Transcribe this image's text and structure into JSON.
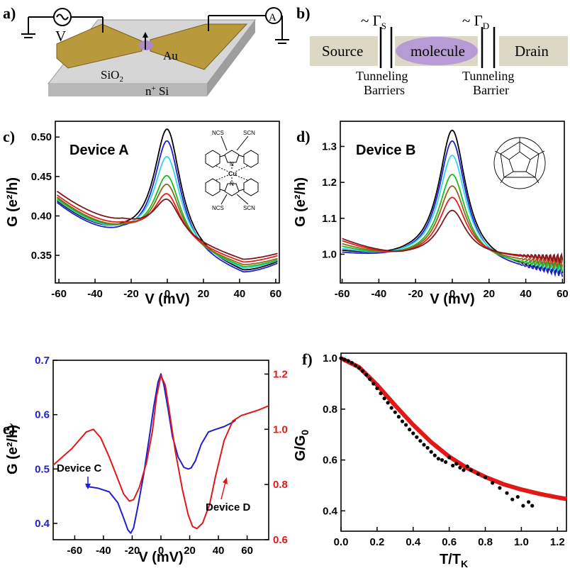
{
  "panel_labels": {
    "a": "a)",
    "b": "b)",
    "c": "c)",
    "d": "d)",
    "e": "e)",
    "f": "f)"
  },
  "schematic_a": {
    "v_label": "V",
    "ammeter": "A",
    "au": "Au",
    "sio2": "SiO",
    "sio2_sub": "2",
    "nsi_pre": "n",
    "nsi_sup": "+",
    "nsi_post": " Si"
  },
  "schematic_b": {
    "source": "Source",
    "molecule": "molecule",
    "drain": "Drain",
    "gamma_s": "~ Γ",
    "gamma_s_sub": "S",
    "gamma_d": "~ Γ",
    "gamma_d_sub": "D",
    "tb_left_1": "Tunneling",
    "tb_left_2": "Barriers",
    "tb_right_1": "Tunneling",
    "tb_right_2": "Barrier"
  },
  "molecule_c": {
    "ncs": "NCS",
    "scn": "SCN",
    "n": "N",
    "cu": "Cu"
  },
  "colors": {
    "blue": "#1f1fd0",
    "red": "#e01818",
    "black": "#000000"
  },
  "chart_data": [
    {
      "type": "line",
      "panel": "c",
      "annotation": "Device A",
      "xlabel": "V (mV)",
      "ylabel": "G (e²/h)",
      "xlim": [
        -62,
        62
      ],
      "ylim": [
        0.315,
        0.52
      ],
      "xticks": [
        -60,
        -40,
        -20,
        0,
        20,
        40,
        60
      ],
      "yticks": [
        0.35,
        0.4,
        0.45,
        0.5
      ],
      "ytick_labels": [
        "0.35",
        "0.40",
        "0.45",
        "0.50"
      ],
      "series": [
        {
          "color": "#000000",
          "peak": 0.51,
          "left_edge": 0.418,
          "left_min": 0.374,
          "right_min": 0.325,
          "right_edge": 0.34
        },
        {
          "color": "#1f1fd0",
          "peak": 0.495,
          "left_edge": 0.416,
          "left_min": 0.372,
          "right_min": 0.323,
          "right_edge": 0.338
        },
        {
          "color": "#33d6e6",
          "peak": 0.475,
          "left_edge": 0.42,
          "left_min": 0.377,
          "right_min": 0.329,
          "right_edge": 0.342
        },
        {
          "color": "#22b822",
          "peak": 0.451,
          "left_edge": 0.422,
          "left_min": 0.38,
          "right_min": 0.332,
          "right_edge": 0.343
        },
        {
          "color": "#8a6a1a",
          "peak": 0.44,
          "left_edge": 0.424,
          "left_min": 0.382,
          "right_min": 0.335,
          "right_edge": 0.345
        },
        {
          "color": "#e02020",
          "peak": 0.428,
          "left_edge": 0.427,
          "left_min": 0.386,
          "right_min": 0.339,
          "right_edge": 0.349
        },
        {
          "color": "#7a1a1a",
          "peak": 0.421,
          "left_edge": 0.432,
          "left_min": 0.392,
          "right_min": 0.343,
          "right_edge": 0.352
        }
      ]
    },
    {
      "type": "line",
      "panel": "d",
      "annotation": "Device B",
      "xlabel": "V (mV)",
      "ylabel": "G (e²/h)",
      "xlim": [
        -61,
        61
      ],
      "ylim": [
        0.92,
        1.37
      ],
      "xticks": [
        -60,
        -40,
        -20,
        0,
        20,
        40,
        60
      ],
      "yticks": [
        1.0,
        1.1,
        1.2,
        1.3
      ],
      "ytick_labels": [
        "1.0",
        "1.1",
        "1.2",
        "1.3"
      ],
      "series": [
        {
          "color": "#000000",
          "peak": 1.345,
          "left_edge": 1.005,
          "left_min": 0.985,
          "right_min": 0.955,
          "right_edge": 0.945
        },
        {
          "color": "#1f1fd0",
          "peak": 1.315,
          "left_edge": 1.0,
          "left_min": 0.983,
          "right_min": 0.95,
          "right_edge": 0.94
        },
        {
          "color": "#33d6e6",
          "peak": 1.275,
          "left_edge": 1.012,
          "left_min": 0.987,
          "right_min": 0.962,
          "right_edge": 0.955
        },
        {
          "color": "#22b822",
          "peak": 1.222,
          "left_edge": 1.02,
          "left_min": 0.988,
          "right_min": 0.966,
          "right_edge": 0.96
        },
        {
          "color": "#8a6a1a",
          "peak": 1.19,
          "left_edge": 1.028,
          "left_min": 0.99,
          "right_min": 0.975,
          "right_edge": 0.968
        },
        {
          "color": "#e02020",
          "peak": 1.158,
          "left_edge": 1.038,
          "left_min": 0.992,
          "right_min": 0.985,
          "right_edge": 0.978
        },
        {
          "color": "#7a1a1a",
          "peak": 1.122,
          "left_edge": 1.045,
          "left_min": 0.996,
          "right_min": 0.99,
          "right_edge": 0.985
        }
      ]
    },
    {
      "type": "line",
      "panel": "e",
      "xlabel": "V (mV)",
      "ylabel": "G (e²/h)",
      "xlim": [
        -75,
        75
      ],
      "xticks": [
        -60,
        -40,
        -20,
        0,
        20,
        40,
        60
      ],
      "left_axis": {
        "ylim": [
          0.37,
          0.7
        ],
        "ticks": [
          0.4,
          0.5,
          0.6,
          0.7
        ],
        "labels": [
          "0.4",
          "0.5",
          "0.6",
          "0.7"
        ],
        "color": "#1f1fd0"
      },
      "right_axis": {
        "ylim": [
          0.6,
          1.25
        ],
        "ticks": [
          0.6,
          0.8,
          1.0,
          1.2
        ],
        "labels": [
          "0.6",
          "0.8",
          "1.0",
          "1.2"
        ],
        "color": "#e01818"
      },
      "series": [
        {
          "name": "Device C",
          "axis": "left",
          "color": "#1f1fd0",
          "x": [
            -52,
            -44,
            -36,
            -30,
            -26,
            -23,
            -21,
            -19,
            -16,
            -12,
            -8,
            -5,
            -2,
            0,
            2,
            5,
            8,
            12,
            16,
            19,
            21,
            24,
            28,
            33,
            38,
            44,
            50,
            52
          ],
          "y": [
            0.468,
            0.465,
            0.458,
            0.438,
            0.41,
            0.388,
            0.382,
            0.392,
            0.432,
            0.49,
            0.56,
            0.615,
            0.66,
            0.675,
            0.655,
            0.61,
            0.56,
            0.522,
            0.503,
            0.5,
            0.502,
            0.515,
            0.545,
            0.568,
            0.573,
            0.578,
            0.586,
            0.59
          ]
        },
        {
          "name": "Device D",
          "axis": "right",
          "color": "#e01818",
          "x": [
            -75,
            -62,
            -52,
            -47,
            -42,
            -36,
            -30,
            -26,
            -22,
            -19,
            -15,
            -10,
            -6,
            -3,
            0,
            3,
            6,
            10,
            15,
            19,
            22,
            25,
            29,
            34,
            38,
            44,
            50,
            56,
            62,
            68,
            75
          ],
          "y": [
            0.87,
            0.93,
            0.99,
            1.0,
            0.97,
            0.9,
            0.82,
            0.766,
            0.74,
            0.745,
            0.79,
            0.88,
            0.99,
            1.12,
            1.195,
            1.16,
            1.06,
            0.92,
            0.78,
            0.69,
            0.648,
            0.64,
            0.66,
            0.73,
            0.83,
            0.96,
            1.03,
            1.05,
            1.06,
            1.07,
            1.085
          ]
        }
      ]
    },
    {
      "type": "scatter",
      "panel": "f",
      "xlabel": "T/T",
      "xlabel_sub": "K",
      "ylabel": "G/G",
      "ylabel_sub": "0",
      "xlim": [
        0,
        1.25
      ],
      "ylim": [
        0.32,
        1.02
      ],
      "xticks": [
        0.0,
        0.2,
        0.4,
        0.6,
        0.8,
        1.0,
        1.2
      ],
      "xtick_labels": [
        "0.0",
        "0.2",
        "0.4",
        "0.6",
        "0.8",
        "1.0",
        "1.2"
      ],
      "yticks": [
        0.4,
        0.6,
        0.8,
        1.0
      ],
      "ytick_labels": [
        "0.4",
        "0.6",
        "0.8",
        "1.0"
      ],
      "fit": {
        "color": "#e01818",
        "x": [
          0,
          0.1,
          0.2,
          0.3,
          0.4,
          0.5,
          0.6,
          0.7,
          0.8,
          0.9,
          1.0,
          1.1,
          1.2,
          1.25
        ],
        "y": [
          1.0,
          0.965,
          0.895,
          0.815,
          0.738,
          0.67,
          0.613,
          0.568,
          0.533,
          0.505,
          0.484,
          0.467,
          0.453,
          0.447
        ]
      },
      "points": {
        "color": "#000000",
        "x": [
          0.0,
          0.02,
          0.04,
          0.06,
          0.08,
          0.1,
          0.12,
          0.14,
          0.16,
          0.18,
          0.2,
          0.22,
          0.24,
          0.26,
          0.28,
          0.3,
          0.32,
          0.34,
          0.36,
          0.38,
          0.4,
          0.42,
          0.44,
          0.46,
          0.48,
          0.5,
          0.52,
          0.54,
          0.56,
          0.58,
          0.6,
          0.62,
          0.64,
          0.66,
          0.68,
          0.7,
          0.72,
          0.76,
          0.8,
          0.84,
          0.88,
          0.92,
          0.95,
          0.98,
          1.01,
          1.04,
          1.06
        ],
        "y": [
          1.0,
          0.995,
          0.99,
          0.982,
          0.972,
          0.962,
          0.95,
          0.935,
          0.918,
          0.9,
          0.882,
          0.862,
          0.842,
          0.825,
          0.805,
          0.788,
          0.77,
          0.752,
          0.738,
          0.72,
          0.705,
          0.69,
          0.675,
          0.66,
          0.648,
          0.632,
          0.618,
          0.605,
          0.6,
          0.592,
          0.61,
          0.578,
          0.585,
          0.57,
          0.56,
          0.575,
          0.56,
          0.545,
          0.532,
          0.51,
          0.49,
          0.47,
          0.445,
          0.455,
          0.42,
          0.435,
          0.42
        ]
      }
    }
  ]
}
